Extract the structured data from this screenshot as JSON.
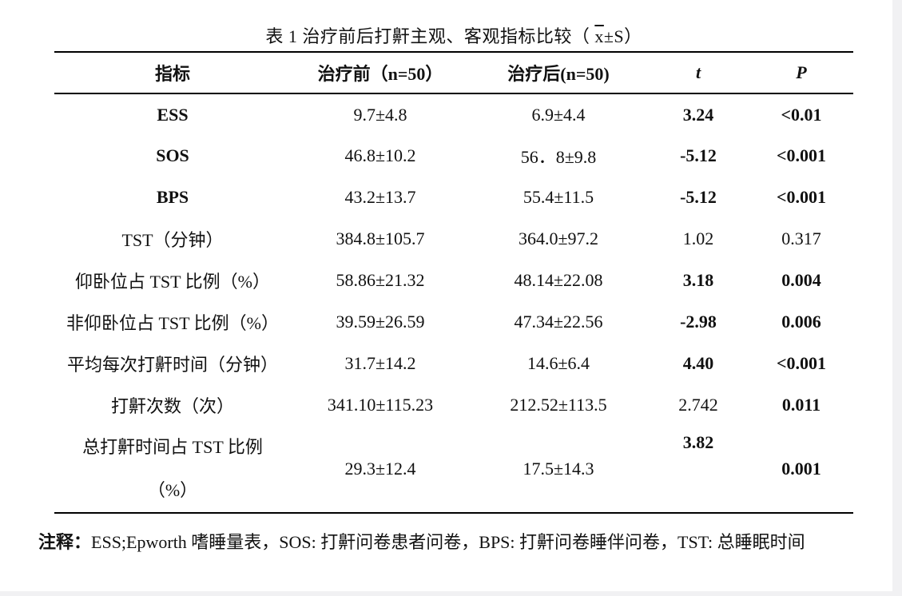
{
  "title": {
    "prefix": "表 1 治疗前后打鼾主观、客观指标比较（ ",
    "xbar": "x",
    "suffix": "±S）"
  },
  "headers": {
    "indicator": "指标",
    "pre": "治疗前（n=50）",
    "post": "治疗后(n=50)",
    "t": "t",
    "p": "P"
  },
  "rows": [
    {
      "indicator": "ESS",
      "pre": "9.7±4.8",
      "post": "6.9±4.4",
      "t": "3.24",
      "p": "<0.01"
    },
    {
      "indicator": "SOS",
      "pre": "46.8±10.2",
      "post": "56．8±9.8",
      "t": "-5.12",
      "p": "<0.001"
    },
    {
      "indicator": "BPS",
      "pre": "43.2±13.7",
      "post": "55.4±11.5",
      "t": "-5.12",
      "p": "<0.001"
    },
    {
      "indicator": "TST（分钟）",
      "pre": "384.8±105.7",
      "post": "364.0±97.2",
      "t": "1.02",
      "p": "0.317"
    },
    {
      "indicator": "仰卧位占 TST 比例（%）",
      "pre": "58.86±21.32",
      "post": "48.14±22.08",
      "t": "3.18",
      "p": "0.004"
    },
    {
      "indicator": "非仰卧位占 TST 比例（%）",
      "pre": "39.59±26.59",
      "post": "47.34±22.56",
      "t": "-2.98",
      "p": "0.006"
    },
    {
      "indicator": "平均每次打鼾时间（分钟）",
      "pre": "31.7±14.2",
      "post": "14.6±6.4",
      "t": "4.40",
      "p": "<0.001"
    },
    {
      "indicator": "打鼾次数（次）",
      "pre": "341.10±115.23",
      "post": "212.52±113.5",
      "t": "2.742",
      "p": "0.011"
    },
    {
      "indicator_line1": "总打鼾时间占 TST 比例",
      "indicator_line2": "（%）",
      "pre": "29.3±12.4",
      "post": "17.5±14.3",
      "t": "3.82",
      "p": "0.001"
    }
  ],
  "note": {
    "label": "注释：",
    "text": "ESS;Epworth 嗜睡量表，SOS: 打鼾问卷患者问卷，BPS: 打鼾问卷睡伴问卷，TST: 总睡眠时间"
  }
}
